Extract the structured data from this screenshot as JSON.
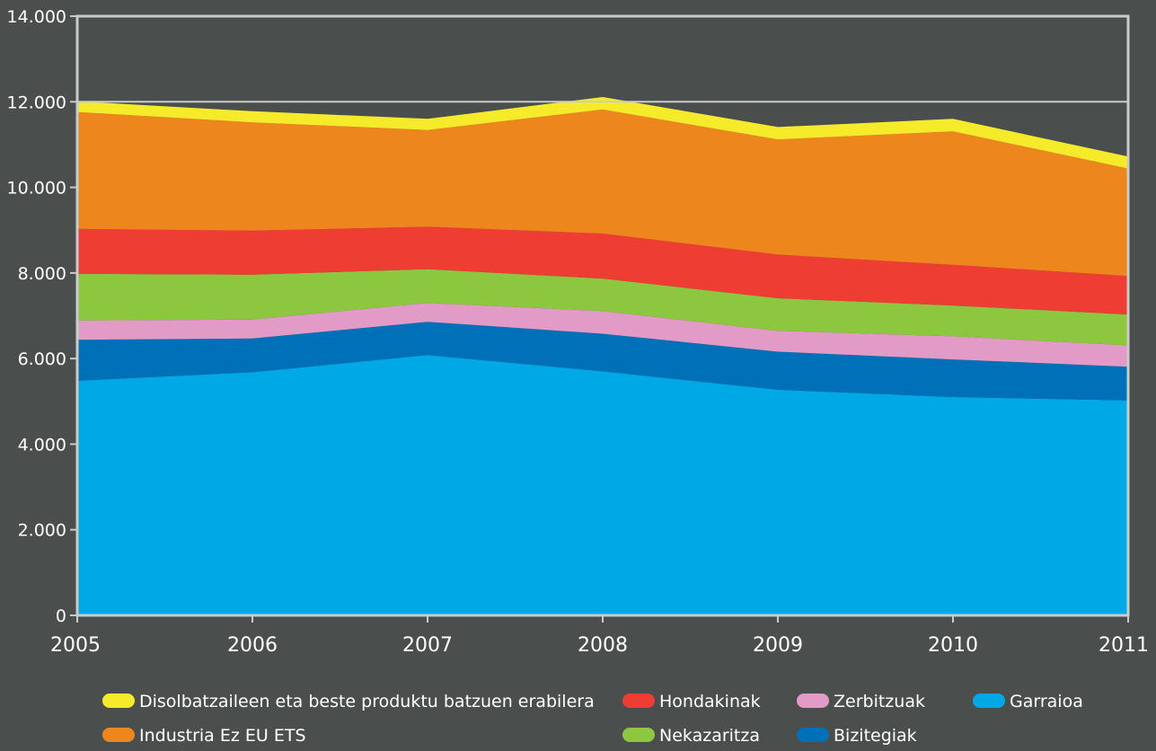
{
  "chart_data": {
    "type": "area",
    "stacked": true,
    "x": [
      "2005",
      "2006",
      "2007",
      "2008",
      "2009",
      "2010",
      "2011"
    ],
    "ylim": [
      0,
      14000
    ],
    "yticks": [
      0,
      2000,
      4000,
      6000,
      8000,
      10000,
      12000,
      14000
    ],
    "ytick_labels": [
      "0",
      "2.000",
      "4.000",
      "6.000",
      "8.000",
      "10.000",
      "12.000",
      "14.000"
    ],
    "reference_line": 12000,
    "series": [
      {
        "name": "Garraioa",
        "color": "#00a9e6",
        "values": [
          5480,
          5680,
          6080,
          5700,
          5270,
          5100,
          5020
        ]
      },
      {
        "name": "Bizitegiak",
        "color": "#0071b8",
        "values": [
          960,
          790,
          780,
          880,
          890,
          880,
          790
        ]
      },
      {
        "name": "Zerbitzuak",
        "color": "#e29ac6",
        "values": [
          450,
          440,
          440,
          530,
          490,
          540,
          500
        ]
      },
      {
        "name": "Nekazaritza",
        "color": "#8dc63f",
        "values": [
          1090,
          1050,
          790,
          760,
          760,
          720,
          720
        ]
      },
      {
        "name": "Hondakinak",
        "color": "#ee3d33",
        "values": [
          1050,
          1030,
          990,
          1050,
          1020,
          950,
          900
        ]
      },
      {
        "name": "Industria Ez EU ETS",
        "color": "#ee861e",
        "values": [
          2730,
          2530,
          2260,
          2900,
          2690,
          3120,
          2510
        ]
      },
      {
        "name": "Disolbatzaileen eta beste produktu batzuen erabilera",
        "color": "#f5eb2a",
        "values": [
          250,
          260,
          260,
          290,
          290,
          290,
          280
        ]
      }
    ],
    "legend": {
      "placement": "bottom",
      "rows": [
        [
          "Disolbatzaileen eta beste produktu batzuen erabilera",
          "Hondakinak",
          "Zerbitzuak",
          "Garraioa"
        ],
        [
          "Industria Ez EU ETS",
          "Nekazaritza",
          "Bizitegiak"
        ]
      ]
    },
    "colors": {
      "background": "#4a4f4d",
      "axis": "#c8cccb",
      "text": "#ffffff"
    }
  }
}
